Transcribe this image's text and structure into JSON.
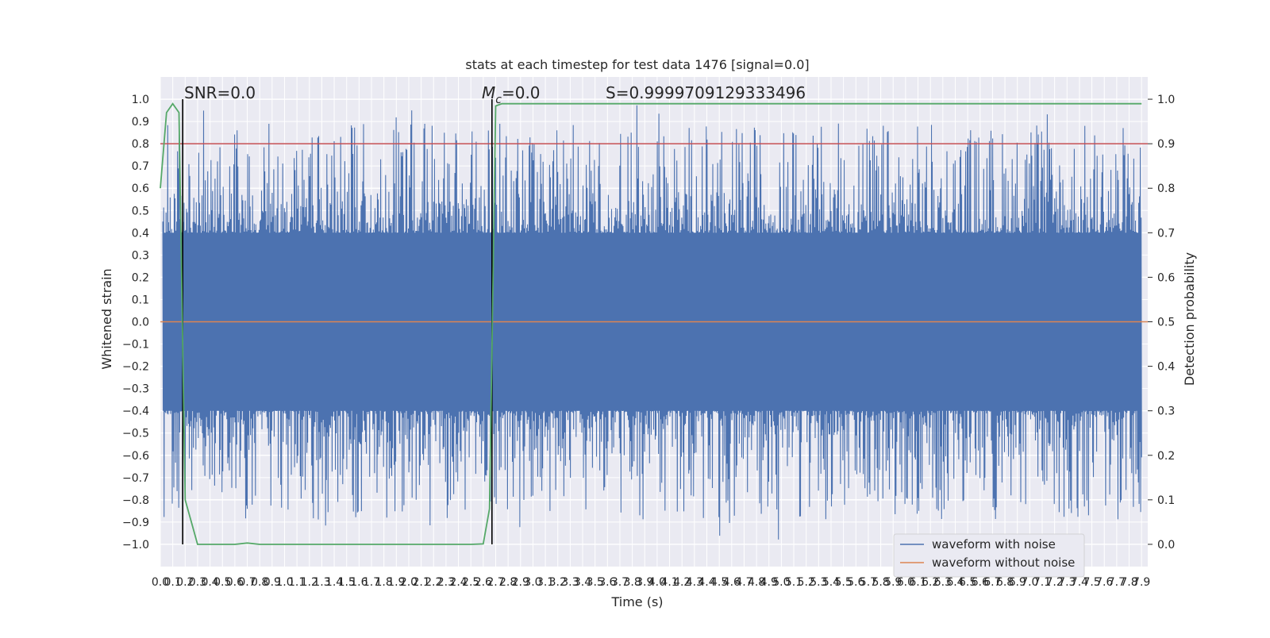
{
  "chart_data": {
    "type": "line",
    "title": "stats at each timestep for test data 1476 [signal=0.0]",
    "xlabel": "Time (s)",
    "ylabel_left": "Whitened strain",
    "ylabel_right": "Detection probability",
    "xlim": [
      0.0,
      7.95
    ],
    "ylim_left": [
      -1.1,
      1.1
    ],
    "ylim_right": [
      -0.05,
      1.05
    ],
    "x_ticks": [
      "0.0",
      "0.1",
      "0.2",
      "0.3",
      "0.4",
      "0.5",
      "0.6",
      "0.7",
      "0.8",
      "0.9",
      "1.0",
      "1.1",
      "1.2",
      "1.3",
      "1.4",
      "1.5",
      "1.6",
      "1.7",
      "1.8",
      "1.9",
      "2.0",
      "2.1",
      "2.2",
      "2.3",
      "2.4",
      "2.5",
      "2.6",
      "2.7",
      "2.8",
      "2.9",
      "3.0",
      "3.1",
      "3.2",
      "3.3",
      "3.4",
      "3.5",
      "3.6",
      "3.7",
      "3.8",
      "3.9",
      "4.0",
      "4.1",
      "4.2",
      "4.3",
      "4.4",
      "4.5",
      "4.6",
      "4.7",
      "4.8",
      "4.9",
      "5.0",
      "5.1",
      "5.2",
      "5.3",
      "5.4",
      "5.5",
      "5.6",
      "5.7",
      "5.8",
      "5.9",
      "6.0",
      "6.1",
      "6.2",
      "6.3",
      "6.4",
      "6.5",
      "6.6",
      "6.7",
      "6.8",
      "6.9",
      "7.0",
      "7.1",
      "7.2",
      "7.3",
      "7.4",
      "7.5",
      "7.6",
      "7.7",
      "7.8",
      "7.9"
    ],
    "y_ticks_left": [
      "1.0",
      "0.9",
      "0.8",
      "0.7",
      "0.6",
      "0.5",
      "0.4",
      "0.3",
      "0.2",
      "0.1",
      "0.0",
      "−0.1",
      "−0.2",
      "−0.3",
      "−0.4",
      "−0.5",
      "−0.6",
      "−0.7",
      "−0.8",
      "−0.9",
      "−1.0"
    ],
    "y_ticks_right": [
      "1.0",
      "0.9",
      "0.8",
      "0.7",
      "0.6",
      "0.5",
      "0.4",
      "0.3",
      "0.2",
      "0.1",
      "0.0"
    ],
    "annotations": {
      "snr": "SNR=0.0",
      "mc_symbol": "M",
      "mc_sub": "c",
      "mc_value": "=0.0",
      "s": "S=0.9999709129333496"
    },
    "vlines_x": [
      0.18,
      2.67
    ],
    "threshold_right": 0.9,
    "series": [
      {
        "name": "waveform with noise",
        "color": "#4c72b0",
        "axis": "left",
        "description": "dense noise oscillating roughly within ±0.4, occasional spikes up to ~0.98 and down to ~-0.98",
        "envelope": [
          0.4,
          -0.4
        ]
      },
      {
        "name": "waveform without noise",
        "color": "#dd8452",
        "axis": "left",
        "value": 0.0
      },
      {
        "color": "#c44e52",
        "axis": "right",
        "value": 0.9
      },
      {
        "color": "#55a868",
        "axis": "right",
        "x": [
          0.0,
          0.05,
          0.1,
          0.15,
          0.2,
          0.25,
          0.3,
          0.35,
          0.4,
          0.5,
          0.6,
          0.7,
          0.8,
          0.9,
          1.0,
          1.5,
          2.0,
          2.5,
          2.6,
          2.65,
          2.7,
          2.75,
          2.8,
          3.0,
          4.0,
          5.0,
          6.0,
          7.0,
          7.9
        ],
        "y": [
          0.8,
          0.97,
          0.99,
          0.97,
          0.1,
          0.05,
          0.0,
          0.0,
          0.0,
          0.0,
          0.0,
          0.003,
          0.0,
          0.0,
          0.0,
          0.0,
          0.0,
          0.0,
          0.001,
          0.08,
          0.985,
          0.99,
          0.99,
          0.99,
          0.99,
          0.99,
          0.99,
          0.99,
          0.99
        ]
      }
    ],
    "legend": {
      "placement": "lower-right",
      "entries": [
        "waveform with noise",
        "waveform without noise"
      ]
    },
    "grid": true,
    "colors": {
      "background": "#eaeaf2",
      "grid": "#ffffff",
      "vline": "#000000"
    }
  }
}
